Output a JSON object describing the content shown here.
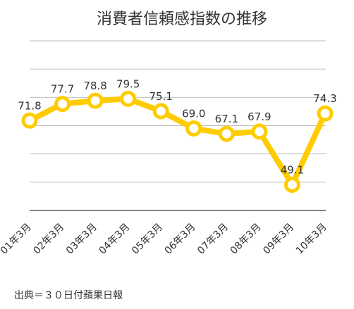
{
  "chart_data": {
    "type": "line",
    "title": "消費者信頼感指数の推移",
    "categories": [
      "01年3月",
      "02年3月",
      "03年3月",
      "04年3月",
      "05年3月",
      "06年3月",
      "07年3月",
      "08年3月",
      "09年3月",
      "10年3月"
    ],
    "series": [
      {
        "values": [
          71.8,
          77.7,
          78.8,
          79.5,
          75.1,
          69.0,
          67.1,
          67.9,
          49.1,
          74.3
        ]
      }
    ],
    "data_labels": [
      "71.8",
      "77.7",
      "78.8",
      "79.5",
      "75.1",
      "69.0",
      "67.1",
      "67.9",
      "49.1",
      "74.3"
    ],
    "ylim": [
      40,
      100
    ],
    "grid": true,
    "legend": "none",
    "colors": {
      "line": "#FFCC00",
      "marker_fill": "#ffffff",
      "grid": "#bfbfbf",
      "axis": "#595959"
    },
    "source": "出典＝３０日付蘋果日報"
  }
}
